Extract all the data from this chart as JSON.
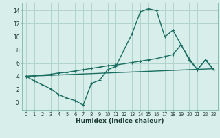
{
  "xlabel": "Humidex (Indice chaleur)",
  "background_color": "#d8eeea",
  "grid_color": "#b2d4cc",
  "line_color": "#1a6e62",
  "x_values": [
    0,
    1,
    2,
    3,
    4,
    5,
    6,
    7,
    8,
    9,
    10,
    11,
    12,
    13,
    14,
    15,
    16,
    17,
    18,
    19,
    20,
    21,
    22,
    23
  ],
  "line1": [
    4.0,
    3.3,
    2.7,
    2.1,
    1.2,
    0.7,
    0.3,
    -0.4,
    2.9,
    3.4,
    5.0,
    5.5,
    8.0,
    10.5,
    13.8,
    14.3,
    14.0,
    10.0,
    11.0,
    8.8,
    6.7,
    5.0,
    6.5,
    5.0
  ],
  "line2": [
    4.0,
    4.1,
    4.2,
    4.3,
    4.5,
    4.6,
    4.8,
    5.0,
    5.2,
    5.4,
    5.6,
    5.7,
    5.9,
    6.1,
    6.3,
    6.5,
    6.7,
    7.0,
    7.3,
    8.8,
    6.5,
    5.0,
    6.5,
    5.0
  ],
  "line3": [
    4.0,
    4.05,
    4.1,
    4.15,
    4.2,
    4.25,
    4.3,
    4.35,
    4.4,
    4.45,
    4.5,
    4.55,
    4.6,
    4.65,
    4.7,
    4.75,
    4.8,
    4.85,
    4.9,
    4.95,
    5.0,
    5.05,
    5.1,
    5.15
  ],
  "ylim": [
    -1.2,
    15.2
  ],
  "xlim": [
    -0.5,
    23.5
  ],
  "yticks": [
    0,
    2,
    4,
    6,
    8,
    10,
    12,
    14
  ],
  "ytick_labels": [
    "-0",
    "2",
    "4",
    "6",
    "8",
    "10",
    "12",
    "14"
  ],
  "xticks": [
    0,
    1,
    2,
    3,
    4,
    5,
    6,
    7,
    8,
    9,
    10,
    11,
    12,
    13,
    14,
    15,
    16,
    17,
    18,
    19,
    20,
    21,
    22,
    23
  ],
  "linewidth": 1.0,
  "markersize": 3.5
}
